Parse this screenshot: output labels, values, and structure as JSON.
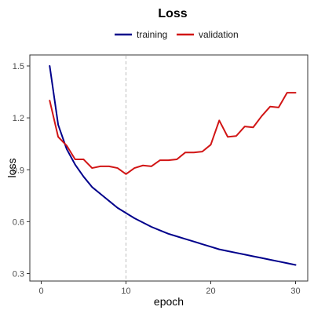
{
  "chart_data": {
    "type": "line",
    "title": "Loss",
    "xlabel": "epoch",
    "ylabel": "loss",
    "xlim": [
      0,
      30
    ],
    "ylim": [
      0.3,
      1.5
    ],
    "xticks": [
      "0",
      "10",
      "20",
      "30"
    ],
    "yticks": [
      "0.3",
      "0.6",
      "0.9",
      "1.2",
      "1.5"
    ],
    "grid": false,
    "legend_position": "top",
    "reference_line": {
      "x": 10,
      "style": "dashed",
      "color": "#bdbdbd"
    },
    "x": [
      1,
      2,
      3,
      4,
      5,
      6,
      7,
      8,
      9,
      10,
      11,
      12,
      13,
      14,
      15,
      16,
      17,
      18,
      19,
      20,
      21,
      22,
      23,
      24,
      25,
      26,
      27,
      28,
      29,
      30
    ],
    "series": [
      {
        "name": "training",
        "color": "#00008b",
        "values": [
          1.5,
          1.16,
          1.02,
          0.93,
          0.86,
          0.8,
          0.76,
          0.72,
          0.68,
          0.65,
          0.62,
          0.595,
          0.57,
          0.55,
          0.53,
          0.515,
          0.5,
          0.485,
          0.47,
          0.455,
          0.44,
          0.43,
          0.42,
          0.41,
          0.4,
          0.39,
          0.38,
          0.37,
          0.36,
          0.35
        ]
      },
      {
        "name": "validation",
        "color": "#d11515",
        "values": [
          1.3,
          1.09,
          1.04,
          0.96,
          0.96,
          0.91,
          0.92,
          0.92,
          0.91,
          0.875,
          0.91,
          0.925,
          0.92,
          0.955,
          0.955,
          0.96,
          1.0,
          1.0,
          1.005,
          1.045,
          1.185,
          1.09,
          1.095,
          1.15,
          1.145,
          1.21,
          1.265,
          1.26,
          1.345,
          1.345
        ]
      }
    ]
  }
}
